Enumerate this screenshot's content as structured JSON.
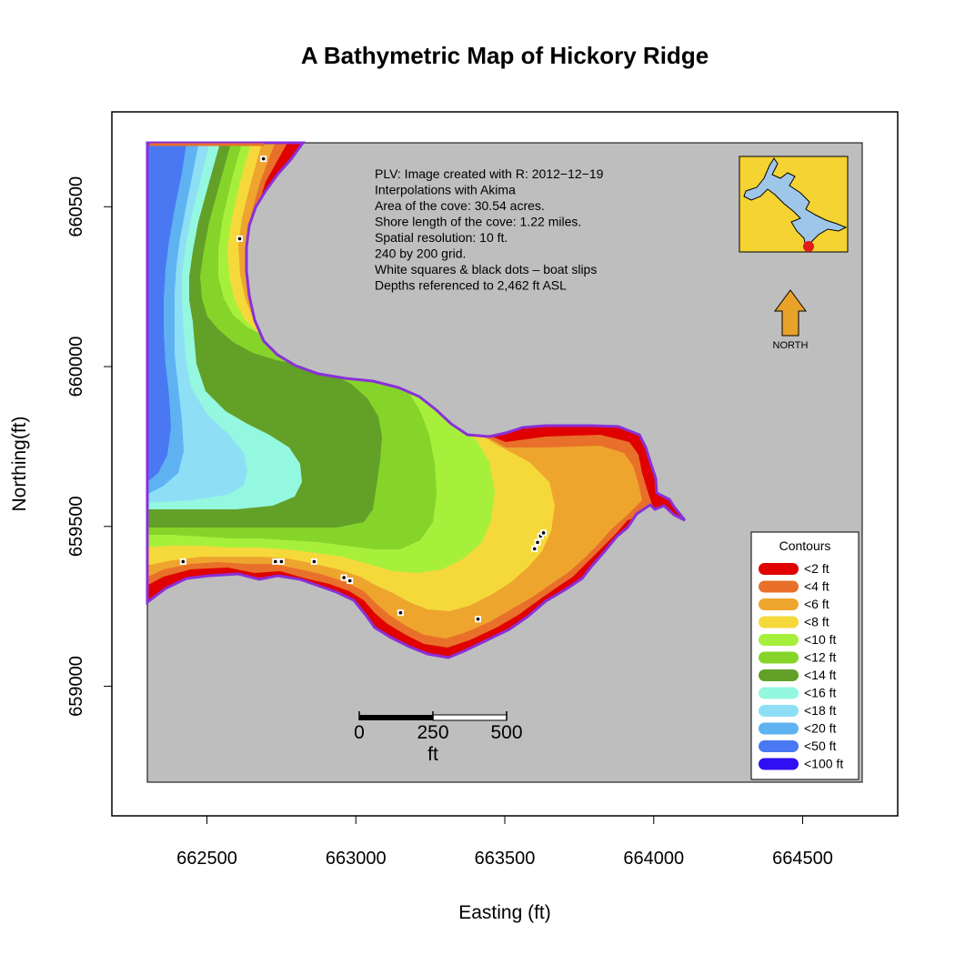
{
  "title": "A Bathymetric Map of  Hickory Ridge",
  "x_axis": {
    "label": "Easting (ft)",
    "ticks": [
      "662500",
      "663000",
      "663500",
      "664000",
      "664500"
    ],
    "tick_values": [
      662500,
      663000,
      663500,
      664000,
      664500
    ],
    "range": [
      662300,
      664700
    ]
  },
  "y_axis": {
    "label": "Northing(ft)",
    "ticks": [
      "659000",
      "659500",
      "660000",
      "660500"
    ],
    "tick_values": [
      659000,
      659500,
      660000,
      660500
    ],
    "range": [
      658700,
      660700
    ]
  },
  "notes": [
    "PLV: Image created with R: 2012−12−19",
    "Interpolations with Akima",
    "Area of the cove: 30.54 acres.",
    "Shore length of the cove: 1.22 miles.",
    "Spatial resolution: 10 ft.",
    "240 by 200 grid.",
    "White squares & black dots – boat slips",
    "Depths referenced to 2,462 ft ASL"
  ],
  "north_arrow": {
    "label": "NORTH",
    "color": "#e8a22a"
  },
  "scale_bar": {
    "tick_labels": [
      "0",
      "250",
      "500"
    ],
    "unit": "ft"
  },
  "inset_map": {
    "background": "#f5d332",
    "water": "#9ec6e8",
    "marker": "#e01c1c"
  },
  "legend": {
    "title": "Contours",
    "items": [
      {
        "label": "<2 ft",
        "color": "#e00000"
      },
      {
        "label": "<4 ft",
        "color": "#e8702a"
      },
      {
        "label": "<6 ft",
        "color": "#eea52e"
      },
      {
        "label": "<8 ft",
        "color": "#f5d93a"
      },
      {
        "label": "<10 ft",
        "color": "#a6f03c"
      },
      {
        "label": "<12 ft",
        "color": "#86d42a"
      },
      {
        "label": "<14 ft",
        "color": "#62a028"
      },
      {
        "label": "<16 ft",
        "color": "#94f7df"
      },
      {
        "label": "<18 ft",
        "color": "#8edff5"
      },
      {
        "label": "<20 ft",
        "color": "#5fb2f2"
      },
      {
        "label": "<50 ft",
        "color": "#4a78f2"
      },
      {
        "label": "<100 ft",
        "color": "#3010f2"
      }
    ]
  },
  "colors": {
    "land": "#bebebe",
    "shoreline": "#8a30d8"
  },
  "chart_data": {
    "type": "heatmap",
    "title": "A Bathymetric Map of  Hickory Ridge",
    "xlabel": "Easting (ft)",
    "ylabel": "Northing(ft)",
    "xlim": [
      662300,
      664700
    ],
    "ylim": [
      658700,
      660700
    ],
    "grid": false,
    "legend_position": "bottom-right",
    "depth_classes": [
      "<2 ft",
      "<4 ft",
      "<6 ft",
      "<8 ft",
      "<10 ft",
      "<12 ft",
      "<14 ft",
      "<16 ft",
      "<18 ft",
      "<20 ft",
      "<50 ft",
      "<100 ft"
    ],
    "boat_slips": [
      {
        "x": 662420,
        "y": 659390
      },
      {
        "x": 662610,
        "y": 660400
      },
      {
        "x": 662690,
        "y": 660650
      },
      {
        "x": 662730,
        "y": 659390
      },
      {
        "x": 662750,
        "y": 659390
      },
      {
        "x": 662860,
        "y": 659390
      },
      {
        "x": 662960,
        "y": 659340
      },
      {
        "x": 662980,
        "y": 659330
      },
      {
        "x": 663150,
        "y": 659230
      },
      {
        "x": 663410,
        "y": 659210
      },
      {
        "x": 663600,
        "y": 659430
      },
      {
        "x": 663610,
        "y": 659450
      },
      {
        "x": 663620,
        "y": 659470
      },
      {
        "x": 663630,
        "y": 659480
      }
    ]
  }
}
